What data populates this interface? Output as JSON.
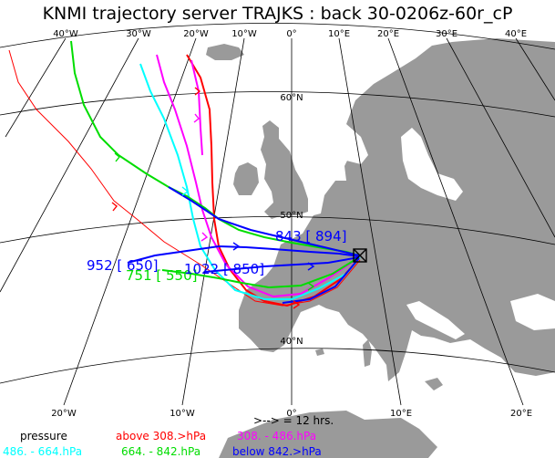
{
  "title": "KNMI trajectory server TRAJKS : back 30-0206z-60r_cP",
  "colors": {
    "land": "#9a9a9a",
    "above": "#ff0000",
    "p308_486": "#ff00ff",
    "p486_664": "#00ffff",
    "p664_842": "#00dd00",
    "below": "#0000ff"
  },
  "graticule": {
    "top_labels": [
      "40°W",
      "30°W",
      "20°W",
      "10°W",
      "0°",
      "10°E",
      "20°E",
      "30°E",
      "40°E"
    ],
    "lat_labels": [
      "60°N",
      "50°N",
      "40°N"
    ],
    "bottom_labels": [
      "20°W",
      "10°W",
      "0°",
      "10°E",
      "20°E"
    ]
  },
  "annotations": {
    "a1": "843 [ 894]",
    "a2": "952 [ 650]",
    "a3": "751 [ 550]",
    "a4": "1022 [ 850]"
  },
  "legend": {
    "arrow_note": ">--> = 12 hrs.",
    "pressure": "pressure",
    "above": "above 308.>hPa",
    "p308_486": "308. -   486.hPa",
    "p486_664": "486. -  664.hPa",
    "p664_842": "664. -  842.hPa",
    "below": "below 842.>hPa"
  }
}
